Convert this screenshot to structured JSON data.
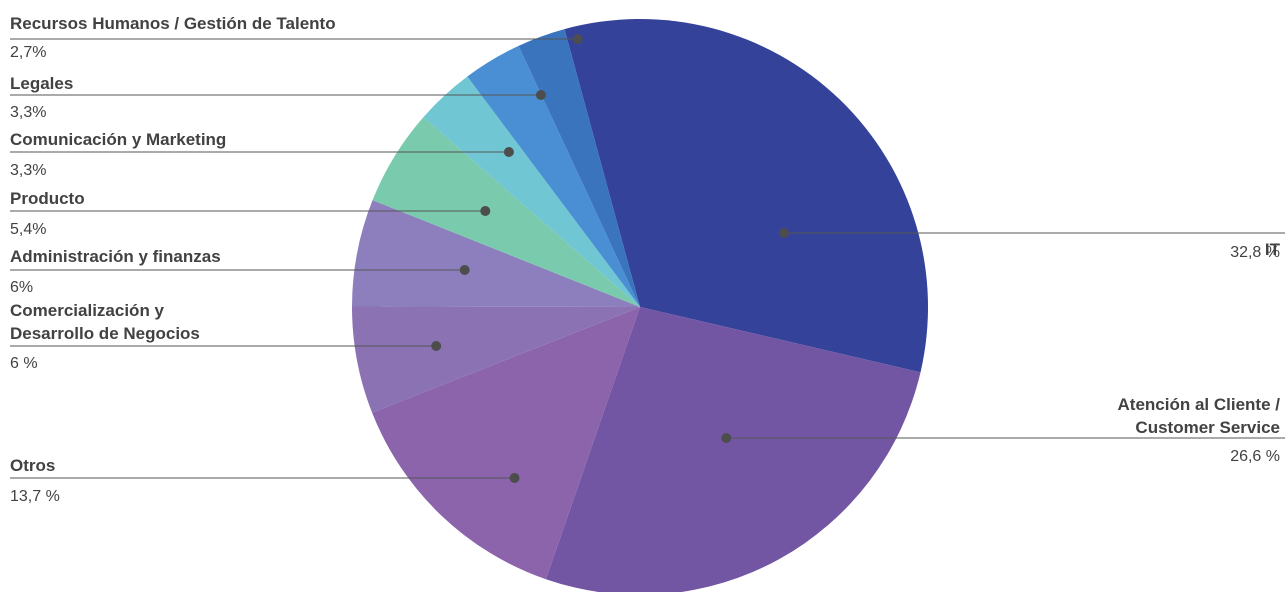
{
  "chart_data": {
    "type": "pie",
    "start_angle_deg": -15.2,
    "direction": "clockwise",
    "slices": [
      {
        "label": "IT",
        "value_label": "32,8 %",
        "value": 32.8,
        "color": "#34429a",
        "side": "right"
      },
      {
        "label": "Atención al Cliente / Customer Service",
        "label_lines": [
          "Atención al Cliente /",
          "Customer Service"
        ],
        "value_label": "26,6 %",
        "value": 26.6,
        "color": "#7356a3",
        "side": "right"
      },
      {
        "label": "Otros",
        "value_label": "13,7 %",
        "value": 13.7,
        "color": "#8b64ab",
        "side": "left"
      },
      {
        "label": "Comercialización y Desarrollo de Negocios",
        "label_lines": [
          "Comercialización y",
          "Desarrollo de Negocios"
        ],
        "value_label": "6 %",
        "value": 6.0,
        "color": "#8b72b3",
        "side": "left"
      },
      {
        "label": "Administración y finanzas",
        "value_label": "6%",
        "value": 6.0,
        "color": "#8d7fbe",
        "side": "left"
      },
      {
        "label": "Producto",
        "value_label": "5,4%",
        "value": 5.4,
        "color": "#7acaad",
        "side": "left"
      },
      {
        "label": "Comunicación y Marketing",
        "value_label": "3,3%",
        "value": 3.3,
        "color": "#70c6d2",
        "side": "left"
      },
      {
        "label": "Legales",
        "value_label": "3,3%",
        "value": 3.3,
        "color": "#4a8fd3",
        "side": "left"
      },
      {
        "label": "Recursos Humanos / Gestión de Talento",
        "value_label": "2,7%",
        "value": 2.7,
        "color": "#3a74bc",
        "side": "left"
      }
    ]
  }
}
